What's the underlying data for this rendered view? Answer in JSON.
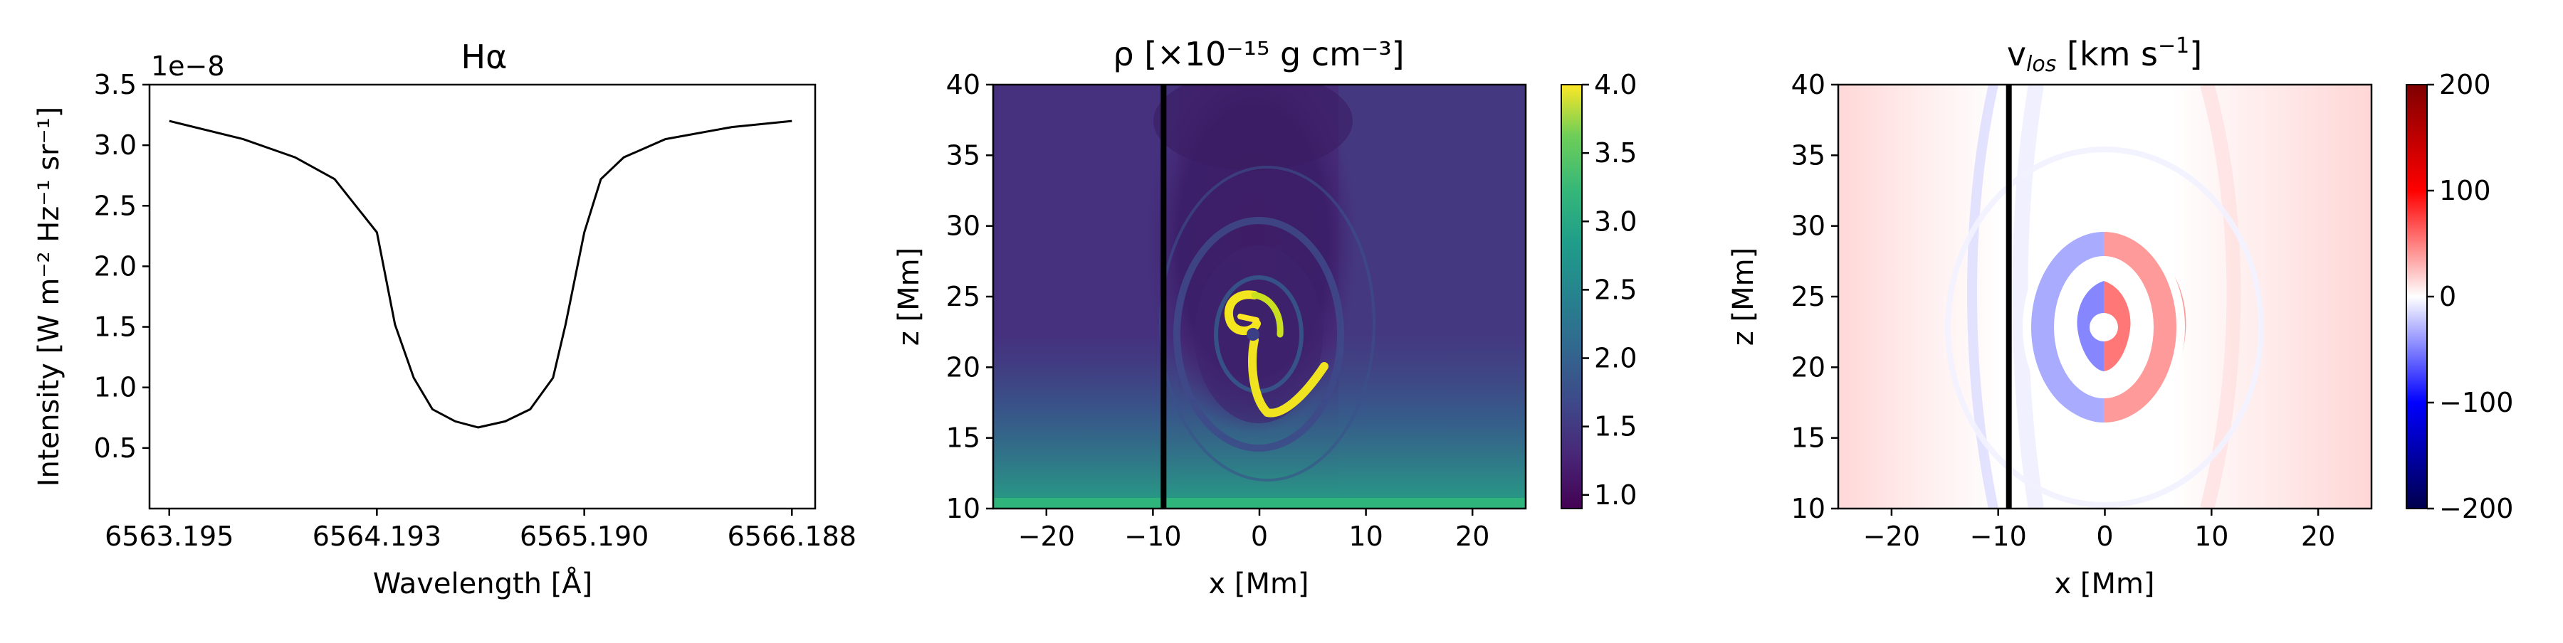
{
  "chart_data": [
    {
      "type": "line",
      "title": "Hα",
      "xlabel": "Wavelength [Å]",
      "ylabel": "Intensity [W m⁻² Hz⁻¹ sr⁻¹]",
      "y_offset_label": "1e−8",
      "xlim": [
        6563.1,
        6566.3
      ],
      "ylim": [
        0.0,
        3.5
      ],
      "x_ticks": [
        "6563.195",
        "6564.193",
        "6565.190",
        "6566.188"
      ],
      "y_ticks": [
        "0.5",
        "1.0",
        "1.5",
        "2.0",
        "2.5",
        "3.0",
        "3.5"
      ],
      "series": [
        {
          "x": [
            6563.195,
            6563.55,
            6563.8,
            6563.99,
            6564.193,
            6564.28,
            6564.37,
            6564.46,
            6564.57,
            6564.68,
            6564.81,
            6564.93,
            6565.04,
            6565.1,
            6565.19,
            6565.27,
            6565.38,
            6565.58,
            6565.9,
            6566.188
          ],
          "y": [
            3.2,
            3.05,
            2.9,
            2.72,
            2.28,
            1.52,
            1.08,
            0.82,
            0.72,
            0.67,
            0.72,
            0.82,
            1.08,
            1.52,
            2.28,
            2.72,
            2.9,
            3.05,
            3.15,
            3.2
          ]
        }
      ]
    },
    {
      "type": "heatmap",
      "title": "ρ [×10⁻¹⁵ g cm⁻³]",
      "xlabel": "x [Mm]",
      "ylabel": "z [Mm]",
      "xlim": [
        -25,
        25
      ],
      "ylim": [
        10,
        40
      ],
      "x_ticks": [
        "−20",
        "−10",
        "0",
        "10",
        "20"
      ],
      "y_ticks": [
        "10",
        "15",
        "20",
        "25",
        "30",
        "35",
        "40"
      ],
      "colormap": "viridis",
      "colorbar_range": [
        0.9,
        4.0
      ],
      "colorbar_ticks": [
        "1.0",
        "1.5",
        "2.0",
        "2.5",
        "3.0",
        "3.5",
        "4.0"
      ],
      "vertical_line_x": -9
    },
    {
      "type": "heatmap",
      "title": "vlos [km s⁻¹]",
      "xlabel": "x [Mm]",
      "ylabel": "z [Mm]",
      "xlim": [
        -25,
        25
      ],
      "ylim": [
        10,
        40
      ],
      "x_ticks": [
        "−20",
        "−10",
        "0",
        "10",
        "20"
      ],
      "y_ticks": [
        "10",
        "15",
        "20",
        "25",
        "30",
        "35",
        "40"
      ],
      "colormap": "seismic",
      "colorbar_range": [
        -200,
        200
      ],
      "colorbar_ticks": [
        "−200",
        "−100",
        "0",
        "100",
        "200"
      ],
      "vertical_line_x": -9
    }
  ],
  "colors": {
    "line": "#000000",
    "viridis_dark": "#440154",
    "viridis_mid": "#21918c",
    "viridis_bright": "#fde725"
  }
}
